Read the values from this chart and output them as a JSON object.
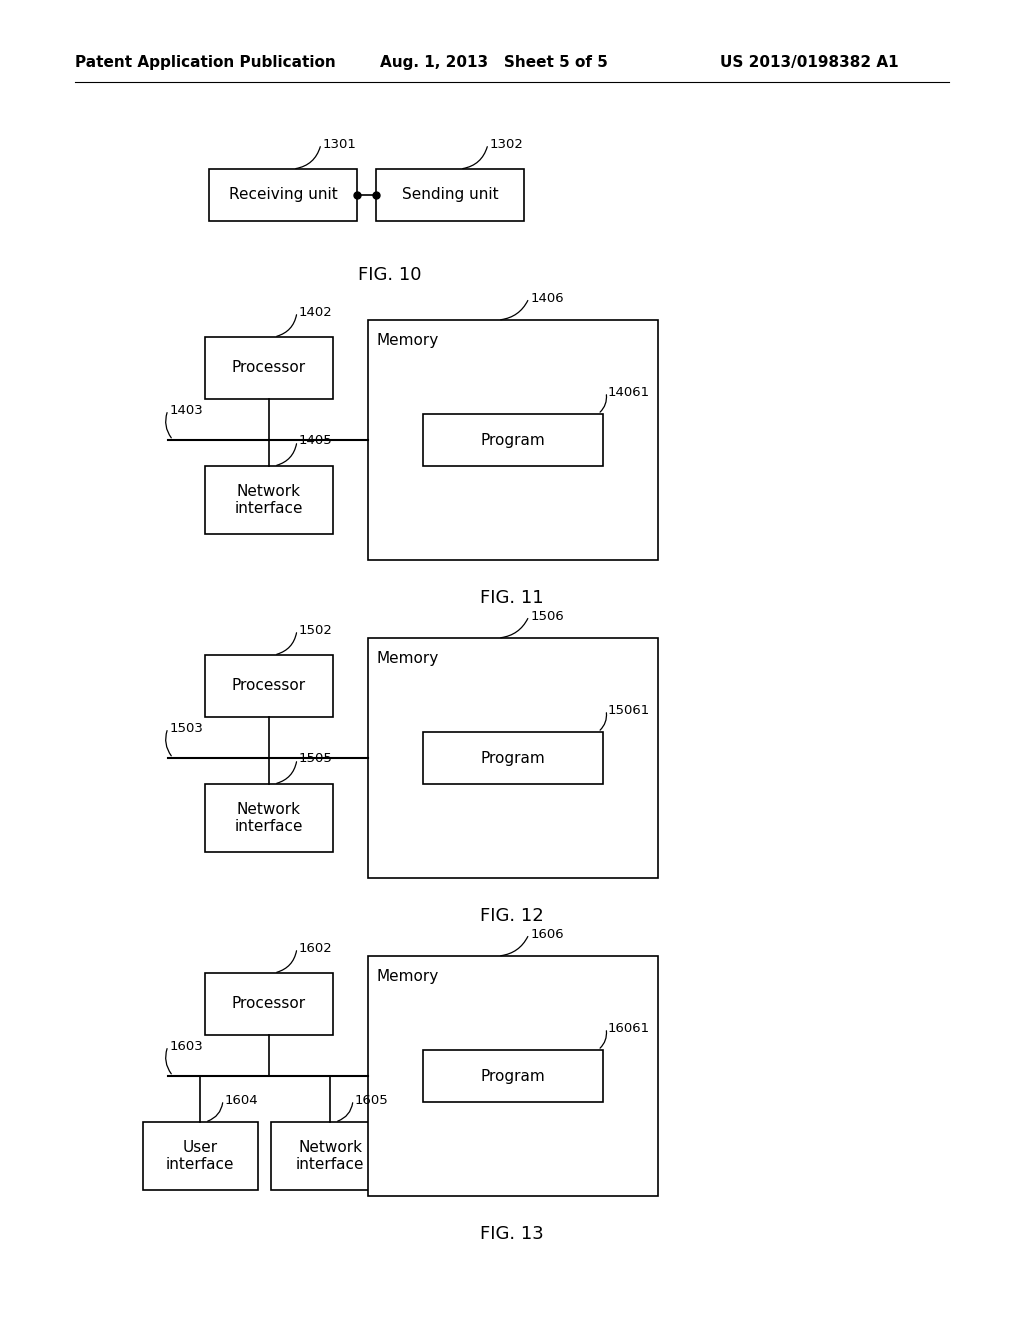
{
  "bg_color": "#ffffff",
  "header_left": "Patent Application Publication",
  "header_mid": "Aug. 1, 2013   Sheet 5 of 5",
  "header_right": "US 2013/0198382 A1",
  "fig10": {
    "label": "FIG. 10",
    "box1_label": "Receiving unit",
    "box1_ref": "1301",
    "box2_label": "Sending unit",
    "box2_ref": "1302"
  },
  "fig11": {
    "label": "FIG. 11",
    "proc_label": "Processor",
    "proc_ref": "1402",
    "bus_ref": "1403",
    "net_label": "Network\ninterface",
    "net_ref": "1405",
    "mem_label": "Memory",
    "mem_ref": "1406",
    "prog_label": "Program",
    "prog_ref": "14061"
  },
  "fig12": {
    "label": "FIG. 12",
    "proc_label": "Processor",
    "proc_ref": "1502",
    "bus_ref": "1503",
    "net_label": "Network\ninterface",
    "net_ref": "1505",
    "mem_label": "Memory",
    "mem_ref": "1506",
    "prog_label": "Program",
    "prog_ref": "15061"
  },
  "fig13": {
    "label": "FIG. 13",
    "proc_label": "Processor",
    "proc_ref": "1602",
    "bus_ref": "1603",
    "ui_label": "User\ninterface",
    "ui_ref": "1604",
    "net_label": "Network\ninterface",
    "net_ref": "1605",
    "mem_label": "Memory",
    "mem_ref": "1606",
    "prog_label": "Program",
    "prog_ref": "16061"
  }
}
